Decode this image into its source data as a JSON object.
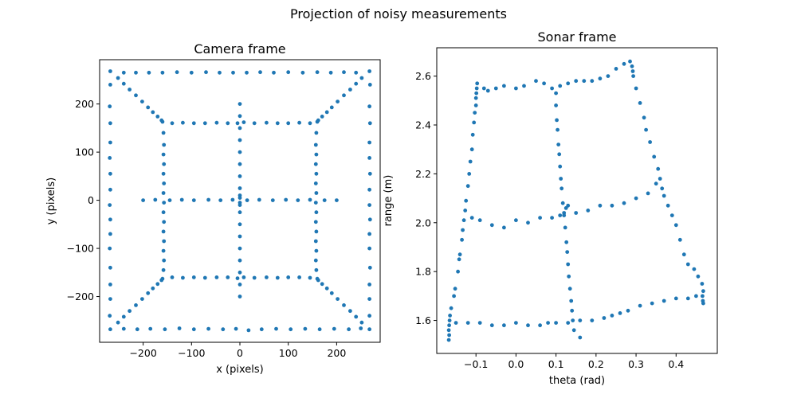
{
  "figure": {
    "suptitle": "Projection of noisy measurements"
  },
  "chart_data": [
    {
      "type": "scatter",
      "title": "Camera frame",
      "xlabel": "x (pixels)",
      "ylabel": "y (pixels)",
      "xlim": [
        -290,
        290
      ],
      "ylim": [
        -295,
        292
      ],
      "xticks": [
        -200,
        -100,
        0,
        100,
        200
      ],
      "xticklabels": [
        "−200",
        "−100",
        "0",
        "100",
        "200"
      ],
      "yticks": [
        -200,
        -100,
        0,
        100,
        200
      ],
      "yticklabels": [
        "−200",
        "−100",
        "0",
        "100",
        "200"
      ],
      "grid": false,
      "color": "#1f77b4",
      "points": [
        [
          -268,
          268
        ],
        [
          -268,
          -268
        ],
        [
          268,
          268
        ],
        [
          268,
          -268
        ],
        [
          -252,
          254
        ],
        [
          -240,
          242
        ],
        [
          -228,
          230
        ],
        [
          -215,
          218
        ],
        [
          -202,
          205
        ],
        [
          -190,
          193
        ],
        [
          -180,
          183
        ],
        [
          -170,
          174
        ],
        [
          -162,
          166
        ],
        [
          -160,
          163
        ],
        [
          252,
          254
        ],
        [
          240,
          242
        ],
        [
          228,
          230
        ],
        [
          215,
          218
        ],
        [
          202,
          205
        ],
        [
          190,
          193
        ],
        [
          180,
          183
        ],
        [
          170,
          174
        ],
        [
          162,
          166
        ],
        [
          160,
          163
        ],
        [
          -252,
          -254
        ],
        [
          -240,
          -242
        ],
        [
          -228,
          -230
        ],
        [
          -215,
          -218
        ],
        [
          -202,
          -205
        ],
        [
          -190,
          -193
        ],
        [
          -180,
          -183
        ],
        [
          -170,
          -174
        ],
        [
          -162,
          -166
        ],
        [
          -160,
          -163
        ],
        [
          252,
          -254
        ],
        [
          240,
          -242
        ],
        [
          228,
          -230
        ],
        [
          215,
          -218
        ],
        [
          202,
          -205
        ],
        [
          190,
          -193
        ],
        [
          180,
          -183
        ],
        [
          170,
          -174
        ],
        [
          162,
          -166
        ],
        [
          160,
          -163
        ],
        [
          -240,
          265
        ],
        [
          -215,
          265
        ],
        [
          -188,
          265
        ],
        [
          -160,
          265
        ],
        [
          -130,
          266
        ],
        [
          -100,
          265
        ],
        [
          -70,
          266
        ],
        [
          -42,
          265
        ],
        [
          -14,
          265
        ],
        [
          14,
          265
        ],
        [
          42,
          266
        ],
        [
          70,
          265
        ],
        [
          100,
          266
        ],
        [
          130,
          265
        ],
        [
          160,
          266
        ],
        [
          188,
          265
        ],
        [
          215,
          266
        ],
        [
          240,
          265
        ],
        [
          -240,
          -267
        ],
        [
          -212,
          -268
        ],
        [
          -185,
          -267
        ],
        [
          -155,
          -268
        ],
        [
          -125,
          -266
        ],
        [
          -95,
          -268
        ],
        [
          -65,
          -267
        ],
        [
          -35,
          -268
        ],
        [
          -8,
          -267
        ],
        [
          18,
          -270
        ],
        [
          45,
          -268
        ],
        [
          75,
          -267
        ],
        [
          105,
          -268
        ],
        [
          135,
          -267
        ],
        [
          165,
          -268
        ],
        [
          195,
          -267
        ],
        [
          225,
          -268
        ],
        [
          250,
          -266
        ],
        [
          -268,
          240
        ],
        [
          -269,
          195
        ],
        [
          -268,
          160
        ],
        [
          -268,
          120
        ],
        [
          -269,
          88
        ],
        [
          -268,
          55
        ],
        [
          -268,
          22
        ],
        [
          -269,
          -10
        ],
        [
          -268,
          -40
        ],
        [
          -268,
          -70
        ],
        [
          -269,
          -100
        ],
        [
          -268,
          -140
        ],
        [
          -268,
          -175
        ],
        [
          -268,
          -205
        ],
        [
          -269,
          -240
        ],
        [
          269,
          240
        ],
        [
          268,
          195
        ],
        [
          269,
          160
        ],
        [
          268,
          120
        ],
        [
          268,
          88
        ],
        [
          269,
          55
        ],
        [
          268,
          22
        ],
        [
          268,
          -10
        ],
        [
          269,
          -40
        ],
        [
          268,
          -70
        ],
        [
          268,
          -100
        ],
        [
          269,
          -140
        ],
        [
          268,
          -175
        ],
        [
          268,
          -205
        ],
        [
          268,
          -240
        ],
        [
          -140,
          160
        ],
        [
          -118,
          161
        ],
        [
          -95,
          160
        ],
        [
          -72,
          160
        ],
        [
          -48,
          161
        ],
        [
          -25,
          160
        ],
        [
          -5,
          160
        ],
        [
          8,
          162
        ],
        [
          30,
          160
        ],
        [
          55,
          161
        ],
        [
          78,
          160
        ],
        [
          100,
          160
        ],
        [
          123,
          161
        ],
        [
          145,
          160
        ],
        [
          -140,
          -160
        ],
        [
          -118,
          -161
        ],
        [
          -95,
          -160
        ],
        [
          -72,
          -161
        ],
        [
          -48,
          -160
        ],
        [
          -25,
          -160
        ],
        [
          -5,
          -162
        ],
        [
          8,
          -160
        ],
        [
          30,
          -161
        ],
        [
          55,
          -160
        ],
        [
          78,
          -161
        ],
        [
          100,
          -160
        ],
        [
          123,
          -160
        ],
        [
          145,
          -161
        ],
        [
          -158,
          140
        ],
        [
          -157,
          115
        ],
        [
          -158,
          95
        ],
        [
          -157,
          75
        ],
        [
          -158,
          55
        ],
        [
          -157,
          35
        ],
        [
          -158,
          15
        ],
        [
          -157,
          -5
        ],
        [
          -158,
          -25
        ],
        [
          -157,
          -45
        ],
        [
          -158,
          -65
        ],
        [
          -157,
          -85
        ],
        [
          -158,
          -105
        ],
        [
          -157,
          -125
        ],
        [
          -158,
          -145
        ],
        [
          158,
          140
        ],
        [
          157,
          115
        ],
        [
          158,
          95
        ],
        [
          157,
          75
        ],
        [
          158,
          55
        ],
        [
          157,
          35
        ],
        [
          158,
          15
        ],
        [
          157,
          -5
        ],
        [
          158,
          -25
        ],
        [
          157,
          -45
        ],
        [
          158,
          -65
        ],
        [
          157,
          -85
        ],
        [
          158,
          -105
        ],
        [
          157,
          -125
        ],
        [
          158,
          -145
        ],
        [
          -200,
          0
        ],
        [
          -175,
          1
        ],
        [
          -145,
          0
        ],
        [
          -120,
          1
        ],
        [
          -95,
          0
        ],
        [
          -65,
          1
        ],
        [
          -40,
          0
        ],
        [
          -15,
          1
        ],
        [
          15,
          0
        ],
        [
          40,
          1
        ],
        [
          68,
          0
        ],
        [
          95,
          1
        ],
        [
          120,
          0
        ],
        [
          145,
          1
        ],
        [
          175,
          0
        ],
        [
          200,
          0
        ],
        [
          0,
          200
        ],
        [
          0,
          175
        ],
        [
          0,
          150
        ],
        [
          0,
          125
        ],
        [
          0,
          100
        ],
        [
          0,
          75
        ],
        [
          0,
          50
        ],
        [
          0,
          25
        ],
        [
          0,
          10
        ],
        [
          0,
          5
        ],
        [
          0,
          -5
        ],
        [
          0,
          -10
        ],
        [
          0,
          -25
        ],
        [
          0,
          -50
        ],
        [
          0,
          -75
        ],
        [
          0,
          -100
        ],
        [
          0,
          -125
        ],
        [
          0,
          -150
        ],
        [
          0,
          -175
        ],
        [
          0,
          -200
        ]
      ]
    },
    {
      "type": "scatter",
      "title": "Sonar frame",
      "xlabel": "theta (rad)",
      "ylabel": "range (m)",
      "xlim": [
        -0.198,
        0.503
      ],
      "ylim": [
        1.465,
        2.716
      ],
      "xticks": [
        -0.1,
        0.0,
        0.1,
        0.2,
        0.3,
        0.4
      ],
      "xticklabels": [
        "−0.1",
        "0.0",
        "0.1",
        "0.2",
        "0.3",
        "0.4"
      ],
      "yticks": [
        1.6,
        1.8,
        2.0,
        2.2,
        2.4,
        2.6
      ],
      "yticklabels": [
        "1.6",
        "1.8",
        "2.0",
        "2.2",
        "2.4",
        "2.6"
      ],
      "grid": false,
      "color": "#1f77b4",
      "points": [
        [
          -0.168,
          1.52
        ],
        [
          -0.167,
          1.54
        ],
        [
          -0.168,
          1.56
        ],
        [
          -0.167,
          1.58
        ],
        [
          -0.166,
          1.6
        ],
        [
          -0.165,
          1.62
        ],
        [
          -0.162,
          1.65
        ],
        [
          -0.155,
          1.7
        ],
        [
          -0.152,
          1.73
        ],
        [
          -0.145,
          1.8
        ],
        [
          -0.142,
          1.85
        ],
        [
          -0.14,
          1.87
        ],
        [
          -0.135,
          1.93
        ],
        [
          -0.133,
          1.97
        ],
        [
          -0.13,
          2.01
        ],
        [
          -0.127,
          2.05
        ],
        [
          -0.125,
          2.09
        ],
        [
          -0.12,
          2.15
        ],
        [
          -0.117,
          2.2
        ],
        [
          -0.114,
          2.25
        ],
        [
          -0.11,
          2.3
        ],
        [
          -0.108,
          2.36
        ],
        [
          -0.105,
          2.41
        ],
        [
          -0.103,
          2.45
        ],
        [
          -0.1,
          2.48
        ],
        [
          -0.1,
          2.51
        ],
        [
          -0.099,
          2.53
        ],
        [
          -0.098,
          2.55
        ],
        [
          -0.097,
          2.57
        ],
        [
          -0.08,
          2.55
        ],
        [
          -0.07,
          2.54
        ],
        [
          -0.05,
          2.55
        ],
        [
          -0.03,
          2.56
        ],
        [
          0.0,
          2.55
        ],
        [
          0.02,
          2.56
        ],
        [
          0.05,
          2.58
        ],
        [
          0.07,
          2.57
        ],
        [
          0.09,
          2.55
        ],
        [
          0.11,
          2.56
        ],
        [
          0.13,
          2.57
        ],
        [
          0.15,
          2.58
        ],
        [
          0.17,
          2.58
        ],
        [
          0.19,
          2.58
        ],
        [
          0.21,
          2.59
        ],
        [
          0.23,
          2.6
        ],
        [
          0.25,
          2.63
        ],
        [
          0.27,
          2.65
        ],
        [
          0.285,
          2.66
        ],
        [
          0.29,
          2.64
        ],
        [
          0.292,
          2.62
        ],
        [
          0.293,
          2.6
        ],
        [
          0.3,
          2.55
        ],
        [
          0.31,
          2.49
        ],
        [
          0.32,
          2.43
        ],
        [
          0.325,
          2.38
        ],
        [
          0.335,
          2.33
        ],
        [
          0.345,
          2.27
        ],
        [
          0.355,
          2.22
        ],
        [
          0.36,
          2.18
        ],
        [
          0.365,
          2.14
        ],
        [
          0.37,
          2.11
        ],
        [
          0.38,
          2.07
        ],
        [
          0.39,
          2.03
        ],
        [
          0.4,
          1.99
        ],
        [
          0.41,
          1.93
        ],
        [
          0.42,
          1.87
        ],
        [
          0.43,
          1.83
        ],
        [
          0.445,
          1.81
        ],
        [
          0.455,
          1.78
        ],
        [
          0.465,
          1.75
        ],
        [
          0.468,
          1.72
        ],
        [
          0.466,
          1.7
        ],
        [
          0.467,
          1.68
        ],
        [
          0.468,
          1.67
        ],
        [
          0.45,
          1.7
        ],
        [
          0.43,
          1.69
        ],
        [
          0.4,
          1.69
        ],
        [
          0.37,
          1.68
        ],
        [
          0.34,
          1.67
        ],
        [
          0.31,
          1.66
        ],
        [
          0.28,
          1.64
        ],
        [
          0.26,
          1.63
        ],
        [
          0.24,
          1.62
        ],
        [
          0.22,
          1.61
        ],
        [
          0.19,
          1.6
        ],
        [
          0.16,
          1.6
        ],
        [
          0.13,
          1.59
        ],
        [
          0.1,
          1.59
        ],
        [
          0.08,
          1.59
        ],
        [
          0.06,
          1.58
        ],
        [
          0.03,
          1.58
        ],
        [
          0.0,
          1.59
        ],
        [
          -0.03,
          1.58
        ],
        [
          -0.06,
          1.58
        ],
        [
          -0.09,
          1.59
        ],
        [
          -0.12,
          1.59
        ],
        [
          -0.15,
          1.59
        ],
        [
          -0.11,
          2.02
        ],
        [
          -0.09,
          2.01
        ],
        [
          -0.06,
          1.99
        ],
        [
          -0.03,
          1.98
        ],
        [
          0.0,
          2.01
        ],
        [
          0.03,
          2.0
        ],
        [
          0.06,
          2.02
        ],
        [
          0.09,
          2.02
        ],
        [
          0.11,
          2.03
        ],
        [
          0.12,
          2.04
        ],
        [
          0.125,
          2.06
        ],
        [
          0.13,
          2.07
        ],
        [
          0.15,
          2.04
        ],
        [
          0.18,
          2.05
        ],
        [
          0.21,
          2.07
        ],
        [
          0.24,
          2.07
        ],
        [
          0.27,
          2.08
        ],
        [
          0.3,
          2.1
        ],
        [
          0.33,
          2.12
        ],
        [
          0.35,
          2.16
        ],
        [
          0.1,
          2.53
        ],
        [
          0.1,
          2.48
        ],
        [
          0.102,
          2.42
        ],
        [
          0.104,
          2.38
        ],
        [
          0.106,
          2.32
        ],
        [
          0.108,
          2.28
        ],
        [
          0.11,
          2.23
        ],
        [
          0.112,
          2.18
        ],
        [
          0.114,
          2.14
        ],
        [
          0.117,
          2.08
        ],
        [
          0.12,
          2.03
        ],
        [
          0.123,
          1.98
        ],
        [
          0.126,
          1.92
        ],
        [
          0.128,
          1.88
        ],
        [
          0.13,
          1.83
        ],
        [
          0.132,
          1.78
        ],
        [
          0.135,
          1.73
        ],
        [
          0.138,
          1.68
        ],
        [
          0.14,
          1.64
        ],
        [
          0.142,
          1.6
        ],
        [
          0.145,
          1.56
        ],
        [
          0.16,
          1.53
        ]
      ]
    }
  ]
}
